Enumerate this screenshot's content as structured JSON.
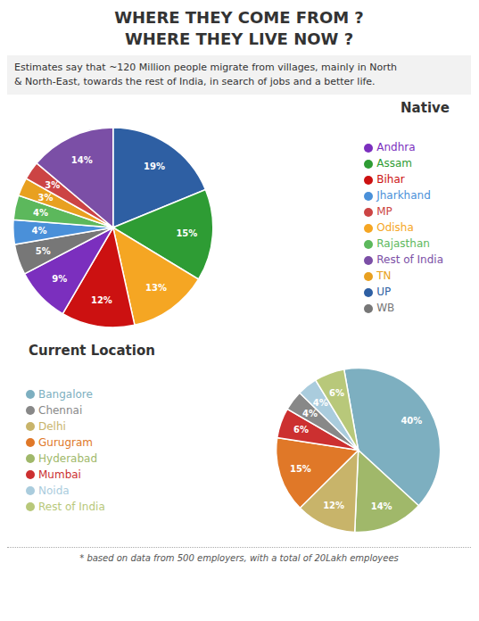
{
  "title": "WHERE THEY COME FROM ?\nWHERE THEY LIVE NOW ?",
  "subtitle": "Estimates say that ~120 Million people migrate from villages, mainly in North\n& North-East, towards the rest of India, in search of jobs and a better life.",
  "annotations": [
    "* based on data from 500 employers, with a total of 20Lakh employees"
  ],
  "chart_data": [
    {
      "type": "pie",
      "title": "Native",
      "categories": [
        "UP",
        "Assam",
        "Odisha",
        "Bihar",
        "Andhra",
        "WB",
        "Jharkhand",
        "Rajasthan",
        "TN",
        "MP",
        "Rest of India"
      ],
      "values": [
        19,
        15,
        13,
        12,
        9,
        5,
        4,
        4,
        3,
        3,
        14
      ],
      "value_labels": [
        "19%",
        "15%",
        "13%",
        "12%",
        "9%",
        "5%",
        "4%",
        "4%",
        "3%",
        "3%",
        "14%"
      ],
      "colors": [
        "#2e5fa3",
        "#2e9c34",
        "#f5a623",
        "#cc1111",
        "#7b2fbe",
        "#777777",
        "#4a90d9",
        "#5cb85c",
        "#e8a020",
        "#cc4444",
        "#7b4fa6"
      ],
      "data_labels": true,
      "legend": "right"
    },
    {
      "type": "pie",
      "title": "Current Location",
      "categories": [
        "Bangalore",
        "Hyderabad",
        "Delhi",
        "Gurugram",
        "Mumbai",
        "Chennai",
        "Noida",
        "Rest of India"
      ],
      "values": [
        40,
        14,
        12,
        15,
        6,
        4,
        4,
        6
      ],
      "value_labels": [
        "40%",
        "14%",
        "12%",
        "15%",
        "6%",
        "4%",
        "4%",
        "6%"
      ],
      "colors": [
        "#7dafc0",
        "#a0b86a",
        "#c8b46a",
        "#e07828",
        "#cc3030",
        "#888888",
        "#aaccdd",
        "#b8c87a"
      ],
      "data_labels": true,
      "legend": "left"
    }
  ]
}
